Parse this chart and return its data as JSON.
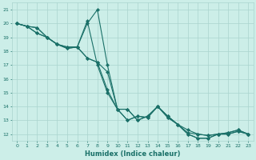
{
  "xlabel": "Humidex (Indice chaleur)",
  "bg_color": "#cceee8",
  "grid_color": "#aad4ce",
  "line_color": "#1a7068",
  "xlim": [
    -0.5,
    23.5
  ],
  "ylim": [
    11.5,
    21.5
  ],
  "xtick_labels": [
    "0",
    "1",
    "2",
    "3",
    "4",
    "5",
    "6",
    "7",
    "8",
    "9",
    "10",
    "11",
    "12",
    "13",
    "14",
    "15",
    "16",
    "17",
    "18",
    "19",
    "20",
    "21",
    "22",
    "23"
  ],
  "ytick_labels": [
    "12",
    "13",
    "14",
    "15",
    "16",
    "17",
    "18",
    "19",
    "20",
    "21"
  ],
  "series": [
    [
      20.0,
      19.8,
      19.7,
      19.0,
      18.5,
      18.3,
      18.3,
      20.0,
      21.0,
      17.0,
      13.8,
      13.8,
      13.0,
      13.3,
      14.0,
      13.3,
      12.7,
      12.0,
      11.7,
      11.7,
      12.0,
      12.0,
      12.2,
      12.0
    ],
    [
      20.0,
      19.8,
      19.7,
      19.0,
      18.5,
      18.3,
      18.3,
      20.2,
      17.0,
      15.0,
      13.8,
      13.8,
      13.0,
      13.3,
      14.0,
      13.3,
      12.7,
      12.0,
      11.7,
      11.7,
      12.0,
      12.0,
      12.2,
      12.0
    ],
    [
      20.0,
      19.8,
      19.3,
      19.0,
      18.5,
      18.2,
      18.3,
      17.5,
      17.2,
      15.2,
      13.8,
      13.0,
      13.3,
      13.2,
      14.0,
      13.2,
      12.7,
      12.1,
      12.0,
      11.9,
      12.0,
      12.1,
      12.3,
      12.0
    ],
    [
      20.0,
      19.8,
      19.3,
      19.0,
      18.5,
      18.2,
      18.3,
      17.5,
      17.2,
      16.5,
      13.8,
      13.0,
      13.3,
      13.2,
      14.0,
      13.2,
      12.7,
      12.3,
      12.0,
      11.9,
      12.0,
      12.1,
      12.3,
      12.0
    ]
  ],
  "marker": "D",
  "marker_size": 2.2,
  "line_width": 0.8
}
